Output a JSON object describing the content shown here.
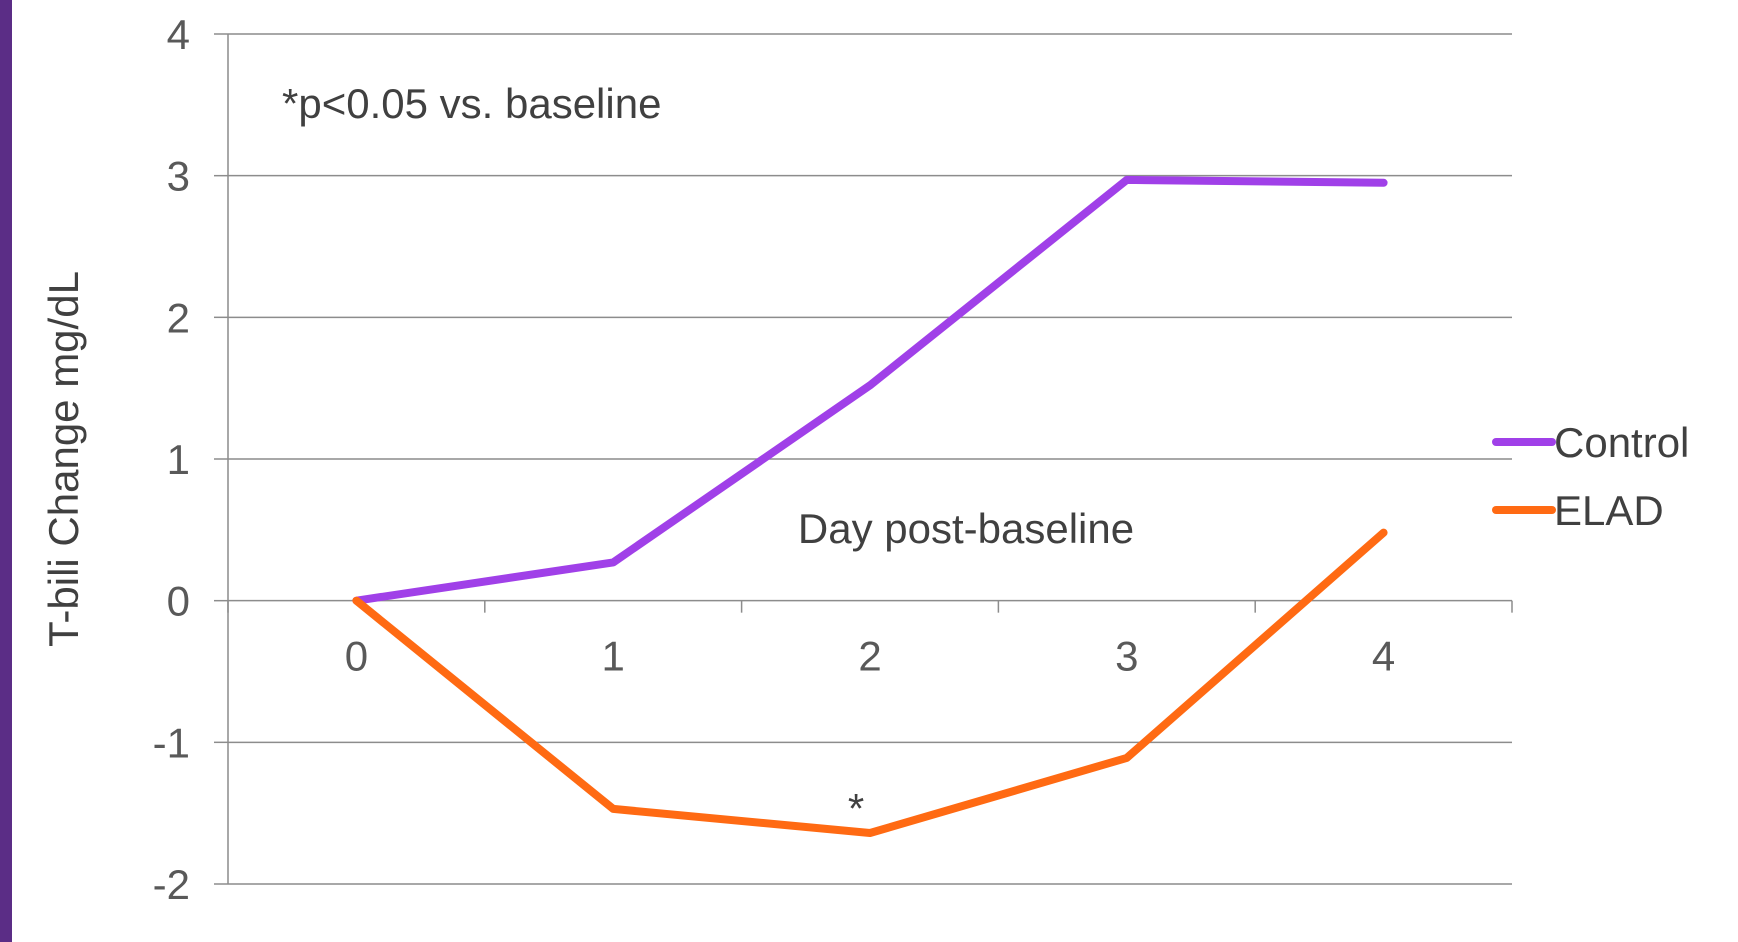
{
  "chart_data": {
    "type": "line",
    "title": "",
    "xlabel": "Day post-baseline",
    "ylabel": "T-bili Change mg/dL",
    "categories": [
      "0",
      "1",
      "2",
      "3",
      "4"
    ],
    "x": [
      0,
      1,
      2,
      3,
      4
    ],
    "ylim": [
      -2,
      4
    ],
    "yticks": [
      -2,
      -1,
      0,
      1,
      2,
      3,
      4
    ],
    "grid": true,
    "legend_position": "right",
    "series": [
      {
        "name": "Control",
        "color": "#a040e8",
        "values": [
          0,
          0.27,
          1.52,
          2.97,
          2.95
        ]
      },
      {
        "name": "ELAD",
        "color": "#ff6a13",
        "values": [
          0,
          -1.47,
          -1.64,
          -1.11,
          0.48
        ]
      }
    ],
    "annotations": [
      {
        "text": "*p<0.05 vs. baseline"
      },
      {
        "text": "*",
        "series": "ELAD",
        "x": 2
      }
    ]
  }
}
